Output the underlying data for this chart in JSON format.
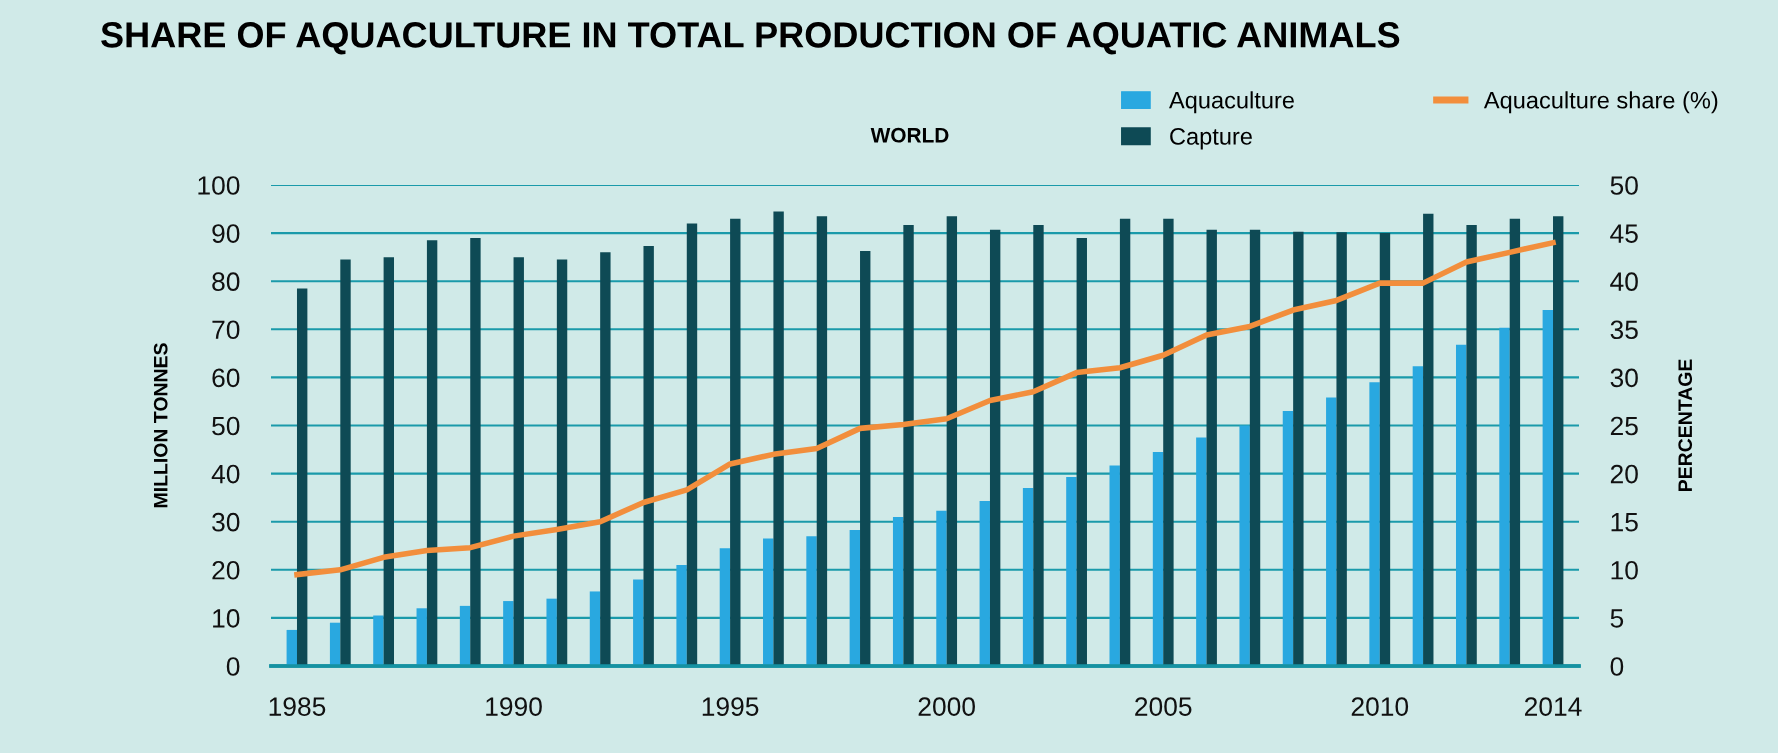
{
  "chart_data": {
    "type": "bar",
    "title": "SHARE OF AQUACULTURE IN TOTAL PRODUCTION OF AQUATIC ANIMALS",
    "subtitle": "WORLD",
    "ylabel": "MILLION TONNES",
    "y2label": "PERCENTAGE",
    "x": [
      1985,
      1986,
      1987,
      1988,
      1989,
      1990,
      1991,
      1992,
      1993,
      1994,
      1995,
      1996,
      1997,
      1998,
      1999,
      2000,
      2001,
      2002,
      2003,
      2004,
      2005,
      2006,
      2007,
      2008,
      2009,
      2010,
      2011,
      2012,
      2013,
      2014
    ],
    "xlim": [
      1984.4,
      2014.6
    ],
    "xticks": [
      1985,
      1990,
      1995,
      2000,
      2005,
      2010,
      2014
    ],
    "ylim": [
      0,
      100
    ],
    "yticks": [
      0,
      10,
      20,
      30,
      40,
      50,
      60,
      70,
      80,
      90,
      100
    ],
    "y2lim": [
      0,
      50
    ],
    "y2ticks": [
      0,
      5,
      10,
      15,
      20,
      25,
      30,
      35,
      40,
      45,
      50
    ],
    "grid": "y",
    "legend": "top right",
    "series": [
      {
        "name": "Aquaculture",
        "color": "#29a8e0",
        "values": [
          7.5,
          9,
          10.5,
          12,
          12.5,
          13.5,
          14,
          15.5,
          18,
          21,
          24.5,
          26.5,
          27,
          28.3,
          31,
          32.3,
          34.3,
          37,
          39.3,
          41.7,
          44.5,
          47.5,
          50,
          53,
          55.8,
          59,
          62.3,
          66.8,
          70.3,
          74
        ]
      },
      {
        "name": "Capture",
        "color": "#0e4a55",
        "values": [
          78.5,
          84.5,
          85,
          88.5,
          89,
          85,
          84.5,
          86,
          87.3,
          92,
          93,
          94.5,
          93.5,
          86.3,
          91.7,
          93.5,
          90.7,
          91.7,
          89,
          93,
          93,
          90.7,
          90.7,
          90.3,
          90.2,
          90,
          94,
          91.7,
          93,
          93.5
        ]
      },
      {
        "name": "Aquaculture share (%)",
        "type": "line",
        "axis": "y2",
        "color": "#f28e3c",
        "values": [
          9.5,
          10,
          11.3,
          12,
          12.3,
          13.5,
          14.2,
          15,
          17,
          18.3,
          21,
          22,
          22.6,
          24.7,
          25.1,
          25.7,
          27.6,
          28.5,
          30.5,
          31,
          32.3,
          34.4,
          35.3,
          37,
          38,
          39.8,
          39.8,
          42,
          43,
          44
        ]
      }
    ]
  }
}
